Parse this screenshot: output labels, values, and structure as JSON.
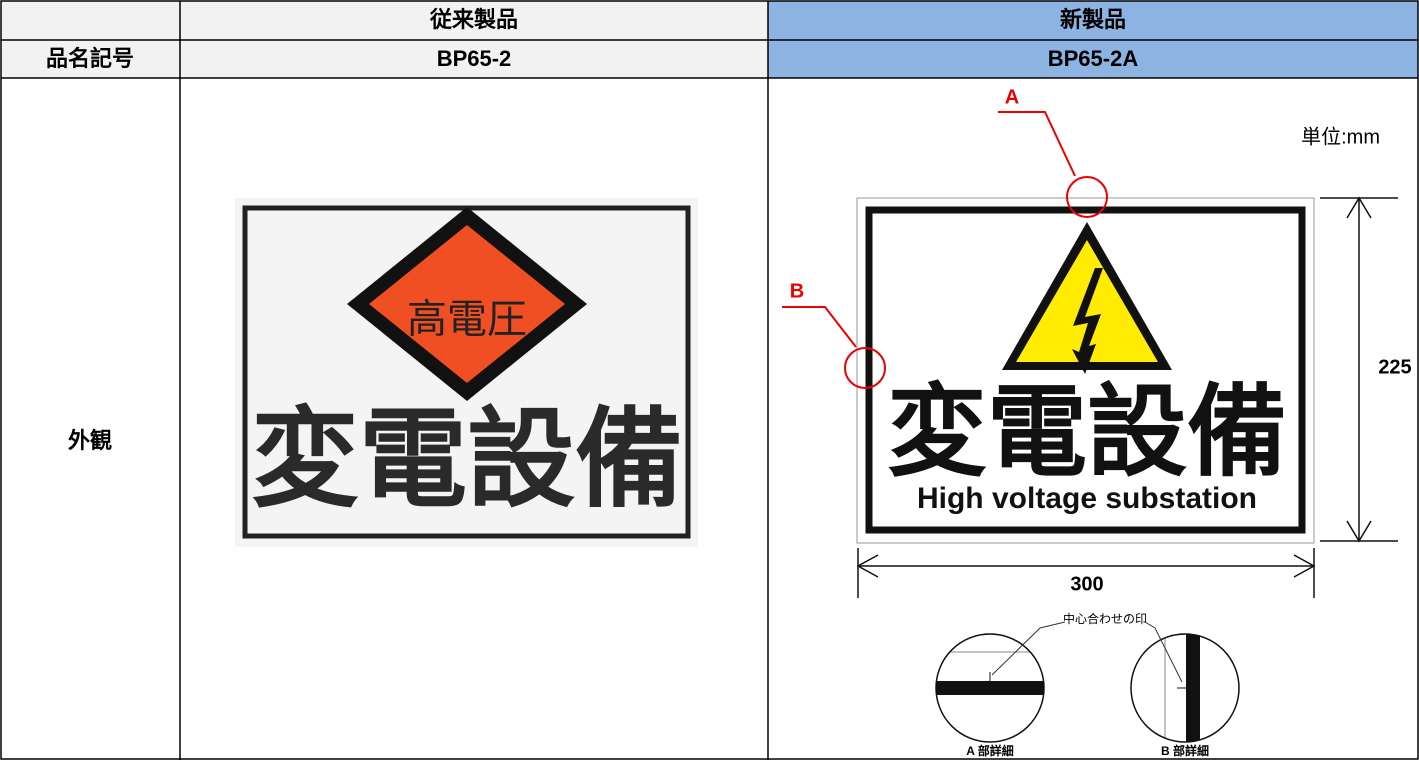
{
  "table": {
    "columns": [
      "従来製品",
      "新製品"
    ],
    "rows": [
      {
        "label": "品名記号",
        "cells": [
          "BP65-2",
          "BP65-2A"
        ]
      },
      {
        "label": "外観"
      }
    ]
  },
  "old_sign": {
    "badge": "高電圧",
    "text": "変電設備"
  },
  "new_drawing": {
    "unit": "単位:mm",
    "callouts": [
      "A",
      "B"
    ],
    "sign_text": "変電設備",
    "sign_subtext": "High voltage substation",
    "height": 225,
    "width": 300,
    "center_mark": "中心合わせの印",
    "details": [
      "A 部詳細",
      "B 部詳細"
    ]
  }
}
